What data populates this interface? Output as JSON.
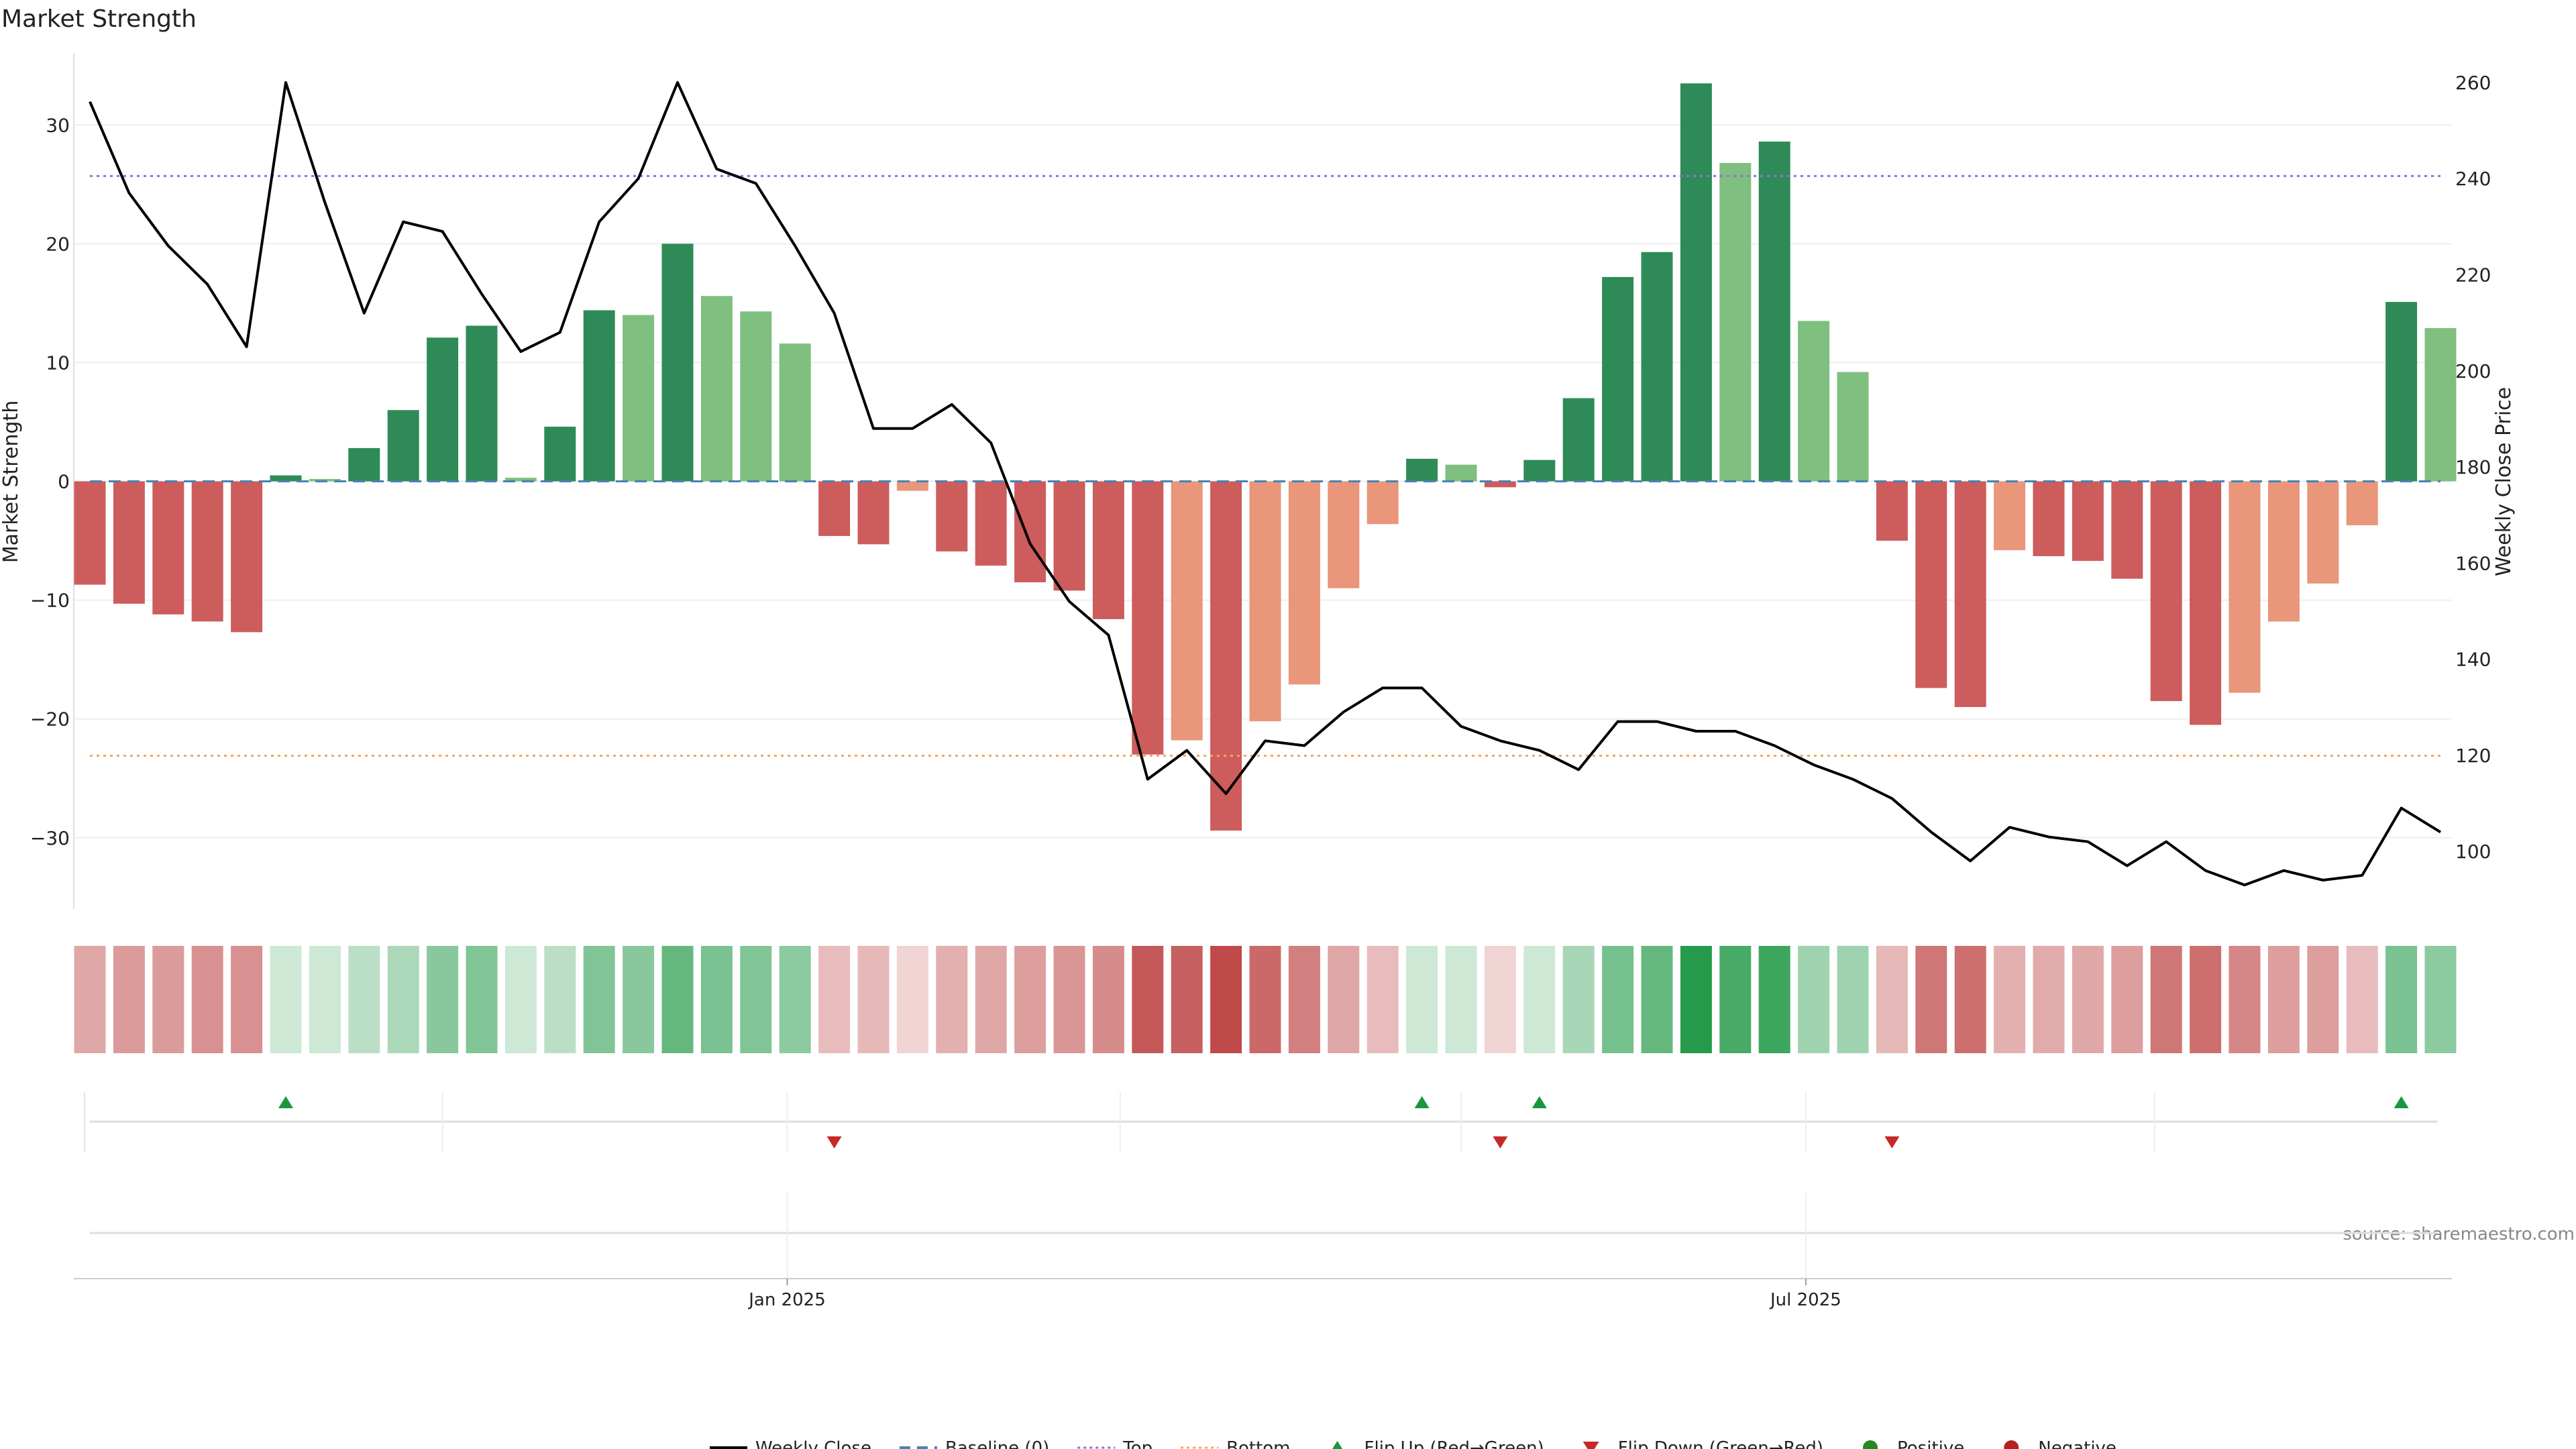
{
  "chart_data": {
    "type": "bar",
    "title": "Market Strength",
    "ylabel": "Market Strength",
    "y2label": "Weekly Close Price",
    "ylim": [
      -36,
      36
    ],
    "y2lim": [
      88,
      266
    ],
    "yticks": [
      -30,
      -20,
      -10,
      0,
      10,
      20,
      30
    ],
    "y2ticks": [
      100,
      120,
      140,
      160,
      180,
      200,
      220,
      240,
      260
    ],
    "top_line": 25.7,
    "bottom_line": -23.1,
    "x_tick_labels": [
      {
        "label": "Jan 2025",
        "index": 17.8
      },
      {
        "label": "Jul 2025",
        "index": 43.8
      }
    ],
    "x_minor_ticks": [
      9,
      17.8,
      26.3,
      35,
      43.8,
      52.7
    ],
    "source": "source: sharemaestro.com",
    "colors": {
      "green_strong": "#2e8b57",
      "green_light": "#7fbf7f",
      "red_strong": "#cd5c5c",
      "red_light": "#e9967a",
      "price_line": "#000000",
      "baseline": "#4682b4",
      "top": "#9370db",
      "bottom": "#f4a460",
      "flip_up": "#1a9641",
      "flip_down": "#c62828",
      "positive": "#228b22",
      "negative": "#b22222"
    },
    "strength": [
      -8.7,
      -10.3,
      -11.2,
      -11.8,
      -12.7,
      0.5,
      0.2,
      2.8,
      6.0,
      12.1,
      13.1,
      0.3,
      4.6,
      14.4,
      14.0,
      20.0,
      15.6,
      14.3,
      11.6,
      -4.6,
      -5.3,
      -0.8,
      -5.9,
      -7.1,
      -8.5,
      -9.2,
      -11.6,
      -23.0,
      -21.8,
      -29.4,
      -20.2,
      -17.1,
      -9.0,
      -3.6,
      1.9,
      1.4,
      -0.5,
      1.8,
      7.0,
      17.2,
      19.3,
      33.5,
      26.8,
      28.6,
      13.5,
      9.2,
      -5.0,
      -17.4,
      -19.0,
      -5.8,
      -6.3,
      -6.7,
      -8.2,
      -18.5,
      -20.5,
      -17.8,
      -11.8,
      -8.6,
      -3.7,
      15.1,
      12.9
    ],
    "bar_shade": [
      "s",
      "s",
      "s",
      "s",
      "s",
      "s",
      "l",
      "s",
      "s",
      "s",
      "s",
      "l",
      "s",
      "s",
      "l",
      "s",
      "l",
      "l",
      "l",
      "s",
      "s",
      "l",
      "s",
      "s",
      "s",
      "s",
      "s",
      "s",
      "l",
      "s",
      "l",
      "l",
      "l",
      "l",
      "s",
      "l",
      "s",
      "s",
      "s",
      "s",
      "s",
      "s",
      "l",
      "s",
      "l",
      "l",
      "s",
      "s",
      "s",
      "l",
      "s",
      "s",
      "s",
      "s",
      "s",
      "l",
      "l",
      "l",
      "l",
      "s",
      "l"
    ],
    "weekly_close": [
      256,
      237,
      226,
      218,
      205,
      260,
      235,
      212,
      231,
      229,
      216,
      204,
      208,
      231,
      240,
      260,
      242,
      239,
      226,
      212,
      188,
      188,
      193,
      185,
      164,
      152,
      145,
      115,
      121,
      112,
      123,
      122,
      129,
      134,
      134,
      126,
      123,
      121,
      117,
      127,
      127,
      125,
      125,
      122,
      118,
      115,
      111,
      104,
      98,
      105,
      103,
      102,
      97,
      102,
      96,
      93,
      96,
      94,
      95,
      109,
      104
    ],
    "heat_opacity": [
      0.4,
      0.45,
      0.45,
      0.5,
      0.5,
      0.22,
      0.22,
      0.3,
      0.37,
      0.52,
      0.55,
      0.22,
      0.3,
      0.55,
      0.52,
      0.68,
      0.58,
      0.55,
      0.5,
      0.3,
      0.32,
      0.2,
      0.36,
      0.4,
      0.44,
      0.48,
      0.52,
      0.75,
      0.72,
      0.82,
      0.68,
      0.58,
      0.4,
      0.3,
      0.22,
      0.22,
      0.2,
      0.22,
      0.38,
      0.6,
      0.68,
      0.95,
      0.8,
      0.85,
      0.42,
      0.42,
      0.32,
      0.62,
      0.65,
      0.36,
      0.38,
      0.4,
      0.44,
      0.62,
      0.65,
      0.55,
      0.44,
      0.44,
      0.3,
      0.58,
      0.5
    ],
    "flip_up_index": [
      5,
      34,
      37,
      59
    ],
    "flip_down_index": [
      19,
      36,
      46
    ],
    "legend": [
      {
        "label": "Weekly Close",
        "kind": "line"
      },
      {
        "label": "Baseline (0)",
        "kind": "dash"
      },
      {
        "label": "Top",
        "kind": "dot-top"
      },
      {
        "label": "Bottom",
        "kind": "dot-bottom"
      },
      {
        "label": "Flip Up (Red→Green)",
        "kind": "tri-up"
      },
      {
        "label": "Flip Down (Green→Red)",
        "kind": "tri-down"
      },
      {
        "label": "Positive",
        "kind": "dot-pos"
      },
      {
        "label": "Negative",
        "kind": "dot-neg"
      }
    ]
  }
}
